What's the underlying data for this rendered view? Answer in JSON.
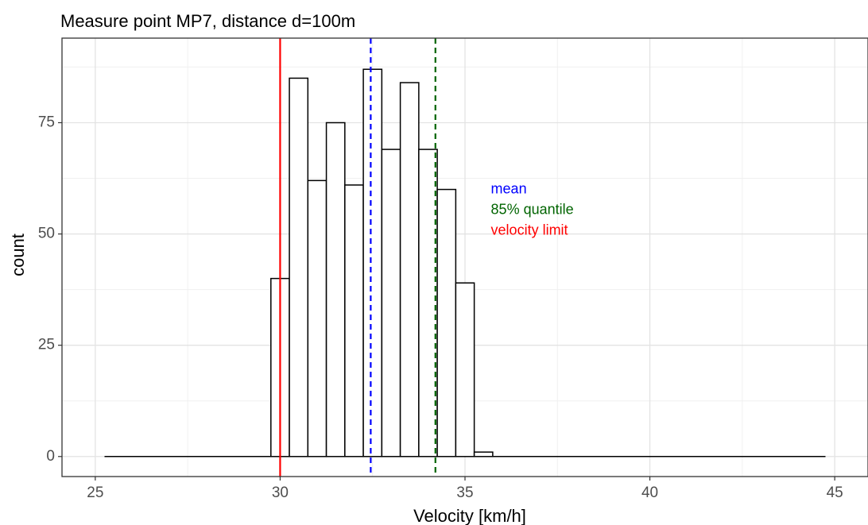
{
  "chart_data": {
    "type": "bar",
    "title": "Measure point MP7, distance d=100m",
    "xlabel": "Velocity [km/h]",
    "ylabel": "count",
    "xlim": [
      24.1,
      45.9
    ],
    "ylim": [
      -4.5,
      94
    ],
    "xticks": [
      25,
      30,
      35,
      40,
      45
    ],
    "yticks": [
      0,
      25,
      50,
      75
    ],
    "grid": true,
    "bin_width": 0.5,
    "bins": [
      {
        "x": 30.0,
        "count": 40
      },
      {
        "x": 30.5,
        "count": 85
      },
      {
        "x": 31.0,
        "count": 62
      },
      {
        "x": 31.5,
        "count": 75
      },
      {
        "x": 32.0,
        "count": 61
      },
      {
        "x": 32.5,
        "count": 87
      },
      {
        "x": 33.0,
        "count": 69
      },
      {
        "x": 33.5,
        "count": 84
      },
      {
        "x": 34.0,
        "count": 69
      },
      {
        "x": 34.5,
        "count": 60
      },
      {
        "x": 35.0,
        "count": 39
      },
      {
        "x": 35.5,
        "count": 1
      }
    ],
    "baseline_range": [
      25.25,
      44.75
    ],
    "reference_lines": [
      {
        "key": "velocity_limit",
        "x": 30.0,
        "color": "#ff0000",
        "style": "solid"
      },
      {
        "key": "mean",
        "x": 32.45,
        "color": "#0000ff",
        "style": "dashed"
      },
      {
        "key": "quantile85",
        "x": 34.2,
        "color": "#006400",
        "style": "dashed"
      }
    ],
    "annotations": [
      {
        "key": "mean",
        "text": "mean",
        "color": "#0000ff",
        "x": 35.7,
        "y": 60
      },
      {
        "key": "quantile85",
        "text": "85% quantile",
        "color": "#006400",
        "x": 35.7,
        "y": 55.3
      },
      {
        "key": "velocity_limit",
        "text": "velocity limit",
        "color": "#ff0000",
        "x": 35.7,
        "y": 50.7
      }
    ]
  }
}
